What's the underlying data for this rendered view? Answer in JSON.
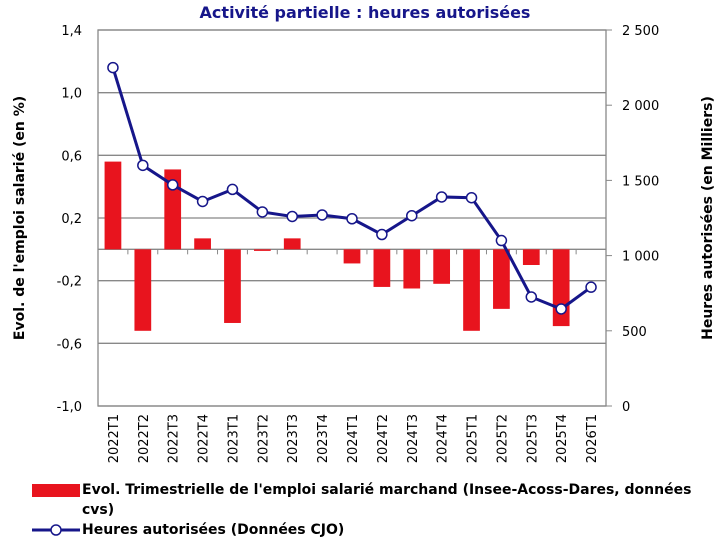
{
  "chart_data": {
    "type": "bar_line",
    "title": "Activité partielle : heures autorisées",
    "y_label": "Evol. de l'emploi salarié (en %)",
    "y2_label": "Heures autorisées (en Milliers)",
    "categories": [
      "2022T1",
      "2022T2",
      "2022T3",
      "2022T4",
      "2023T1",
      "2023T2",
      "2023T3",
      "2023T4",
      "2024T1",
      "2024T2",
      "2024T3",
      "2024T4",
      "2025T1",
      "2025T2",
      "2025T3",
      "2025T4",
      "2026T1"
    ],
    "series": [
      {
        "name": "Evol. Trimestrielle de l'emploi salarié marchand (Insee-Acoss-Dares, données cvs)",
        "type": "bar",
        "color": "#e8141e",
        "values": [
          0.56,
          -0.52,
          0.51,
          0.07,
          -0.47,
          -0.01,
          0.07,
          0,
          -0.09,
          -0.24,
          -0.25,
          -0.22,
          -0.52,
          -0.38,
          -0.1,
          -0.49,
          null
        ]
      },
      {
        "name": "Heures autorisées (Données CJO)",
        "type": "line",
        "axis": "y2",
        "color": "#16168a",
        "values": [
          2250,
          1600,
          1470,
          1360,
          1440,
          1290,
          1260,
          1270,
          1245,
          1140,
          1265,
          1390,
          1385,
          1100,
          725,
          645,
          790
        ]
      }
    ],
    "ylim": [
      -1.0,
      1.4
    ],
    "yticks": [
      {
        "value": -1.0,
        "label": "-1,0"
      },
      {
        "value": -0.6,
        "label": "-0,6"
      },
      {
        "value": -0.2,
        "label": "-0,2"
      },
      {
        "value": 0.2,
        "label": "0,2"
      },
      {
        "value": 0.6,
        "label": "0,6"
      },
      {
        "value": 1.0,
        "label": "1,0"
      },
      {
        "value": 1.4,
        "label": "1,4"
      }
    ],
    "y2lim": [
      0,
      2500
    ],
    "y2ticks": [
      0,
      500,
      {
        "value": 1000,
        "label": "1 000"
      },
      {
        "value": 1500,
        "label": "1 500"
      },
      {
        "value": 2000,
        "label": "2 000"
      },
      {
        "value": 2500,
        "label": "2 500"
      }
    ],
    "grid": true
  }
}
